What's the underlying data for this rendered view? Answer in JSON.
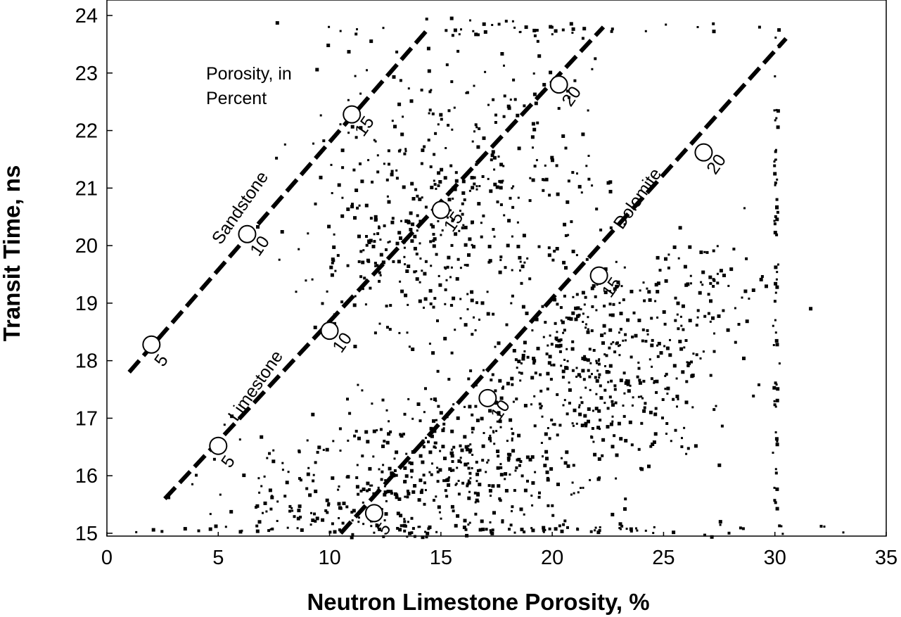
{
  "chart_data": {
    "type": "scatter",
    "xlabel": "Neutron Limestone Porosity, %",
    "ylabel": "Transit Time, ns",
    "xlim": [
      0,
      35
    ],
    "ylim": [
      15,
      24
    ],
    "xticks": [
      "0",
      "5",
      "10",
      "15",
      "20",
      "25",
      "30",
      "35"
    ],
    "yticks": [
      "15",
      "16",
      "17",
      "18",
      "19",
      "20",
      "21",
      "22",
      "23",
      "24"
    ],
    "annotation": [
      "Porosity, in",
      "Percent"
    ],
    "point_color": "#000000",
    "lithology_lines": [
      {
        "label": "Sandstone",
        "line": [
          [
            1,
            17.8
          ],
          [
            14.5,
            23.8
          ]
        ],
        "points": [
          {
            "label": "5",
            "x": 2,
            "y": 18.28
          },
          {
            "label": "10",
            "x": 6.3,
            "y": 20.2
          },
          {
            "label": "15",
            "x": 11,
            "y": 22.28
          }
        ]
      },
      {
        "label": "Limestone",
        "line": [
          [
            2.6,
            15.6
          ],
          [
            22.3,
            23.8
          ]
        ],
        "points": [
          {
            "label": "5",
            "x": 5,
            "y": 16.52
          },
          {
            "label": "10",
            "x": 10,
            "y": 18.52
          },
          {
            "label": "15",
            "x": 15,
            "y": 20.62
          },
          {
            "label": "20",
            "x": 20.3,
            "y": 22.8
          }
        ]
      },
      {
        "label": "Dolomite",
        "line": [
          [
            10.5,
            15.0
          ],
          [
            30.5,
            23.6
          ]
        ],
        "points": [
          {
            "label": "5",
            "x": 12,
            "y": 15.35
          },
          {
            "label": "10",
            "x": 17.1,
            "y": 17.35
          },
          {
            "label": "15",
            "x": 22.1,
            "y": 19.48
          },
          {
            "label": "20",
            "x": 26.8,
            "y": 21.62
          }
        ]
      }
    ],
    "scatter_clusters": [
      {
        "cx": 16,
        "cy": 21.6,
        "sx": 3.2,
        "sy": 1.3,
        "n": 260
      },
      {
        "cx": 14,
        "cy": 19.9,
        "sx": 2.8,
        "sy": 1.0,
        "n": 240
      },
      {
        "cx": 22,
        "cy": 17.9,
        "sx": 2.6,
        "sy": 0.9,
        "n": 420
      },
      {
        "cx": 16,
        "cy": 16.2,
        "sx": 3.0,
        "sy": 0.7,
        "n": 320
      },
      {
        "cx": 10,
        "cy": 15.6,
        "sx": 3.0,
        "sy": 0.6,
        "n": 180
      },
      {
        "cx": 27,
        "cy": 19.2,
        "sx": 1.6,
        "sy": 0.5,
        "n": 70
      },
      {
        "cx": 30,
        "cy": 18.5,
        "sx": 0.06,
        "sy": 2.6,
        "n": 70
      },
      {
        "cx": 18,
        "cy": 15.1,
        "sx": 9,
        "sy": 0.05,
        "n": 90
      },
      {
        "cx": 19,
        "cy": 23.8,
        "sx": 5,
        "sy": 0.08,
        "n": 40
      }
    ]
  }
}
